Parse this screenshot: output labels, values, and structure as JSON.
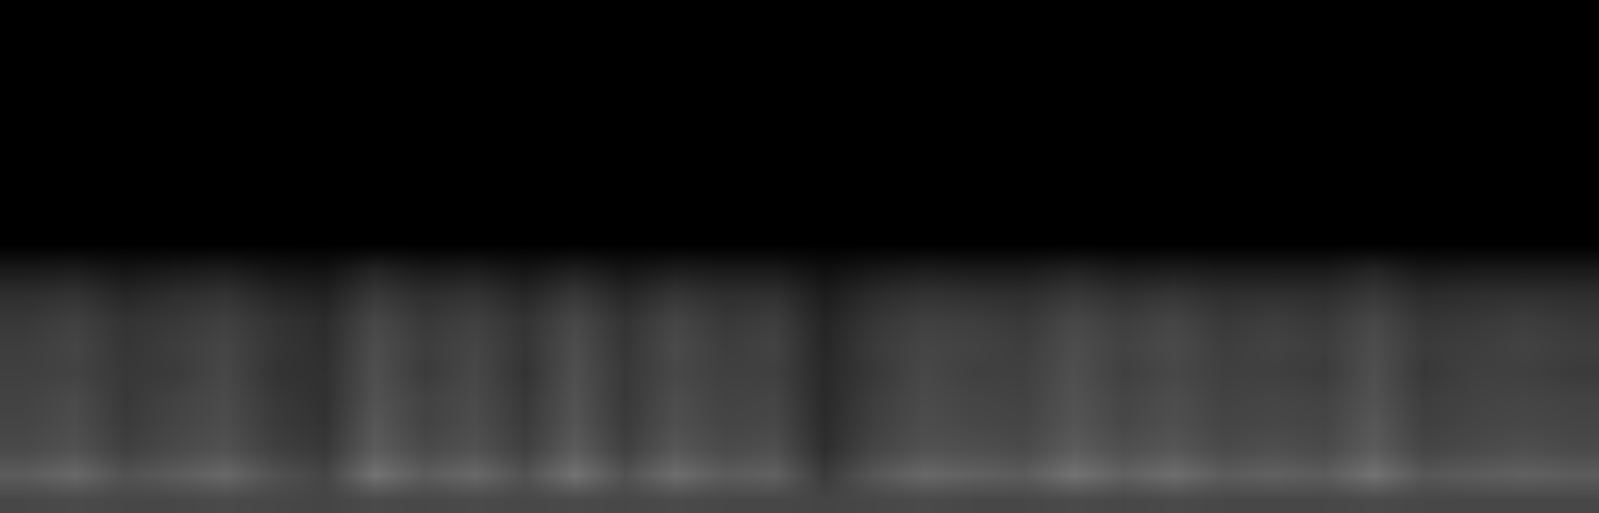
{
  "chart_data": {
    "type": "heatmap",
    "tick_labels": false,
    "color": "#ffffff",
    "zlim": [
      0,
      1
    ],
    "cells": [
      [
        0,
        0,
        0,
        0,
        0,
        0,
        0,
        0,
        0,
        0,
        0,
        0,
        0,
        0,
        0,
        0,
        0,
        0,
        0,
        0,
        0,
        0,
        0,
        0,
        0,
        0,
        0,
        0,
        0,
        0,
        0,
        0
      ],
      [
        0,
        0,
        0,
        0,
        0,
        0,
        0,
        0,
        0,
        0,
        0,
        0,
        0,
        0,
        0,
        0,
        0,
        0,
        0,
        0,
        0,
        0,
        0,
        0,
        0,
        0,
        0,
        0,
        0,
        0,
        0,
        0
      ],
      [
        0,
        0,
        0,
        0,
        0,
        0,
        0,
        0,
        0,
        0,
        0,
        0,
        0,
        0,
        0,
        0,
        0,
        0,
        0,
        0,
        0,
        0,
        0,
        0,
        0,
        0,
        0,
        0,
        0,
        0,
        0,
        0
      ],
      [
        0,
        0,
        0,
        0,
        0,
        0,
        0,
        0,
        0,
        0,
        0,
        0,
        0,
        0,
        0,
        0,
        0,
        0,
        0,
        0,
        0,
        0,
        0,
        0,
        0,
        0,
        0,
        0,
        0,
        0,
        0,
        0
      ],
      [
        0,
        0,
        0,
        0,
        0,
        0,
        0,
        0,
        0,
        0,
        0,
        0,
        0,
        0,
        0,
        0,
        0,
        0,
        0,
        0,
        0,
        0,
        0,
        0,
        0,
        0,
        0,
        0,
        0,
        0,
        0,
        0
      ],
      [
        0,
        0,
        0,
        0,
        0,
        0,
        0,
        0,
        0,
        0,
        0,
        0,
        0,
        0,
        0,
        0,
        0,
        0,
        0,
        0,
        0,
        0,
        0,
        0,
        0,
        0,
        0,
        0,
        0,
        0,
        0,
        0
      ],
      [
        0,
        0,
        0,
        0,
        0,
        0,
        0,
        0,
        0,
        0,
        0,
        0,
        0,
        0,
        0,
        0,
        0,
        0,
        0,
        0,
        0,
        0,
        0,
        0,
        0,
        0,
        0,
        0,
        0,
        0,
        0,
        0
      ],
      [
        0,
        0,
        0,
        0,
        0,
        0,
        0,
        0,
        0,
        0,
        0,
        0,
        0,
        0,
        0,
        0,
        0,
        0,
        0,
        0,
        0,
        0,
        0,
        0,
        0,
        0,
        0,
        0,
        0,
        0,
        0,
        0
      ],
      [
        0,
        0,
        0,
        0,
        0,
        0,
        0,
        0,
        0,
        0,
        0,
        0,
        0,
        0,
        0,
        0,
        0,
        0,
        0,
        0,
        0,
        0,
        0,
        0,
        0,
        0,
        0,
        0,
        0,
        0,
        0,
        0
      ],
      [
        0,
        0,
        0,
        0,
        0,
        0,
        0,
        0,
        0,
        0,
        0,
        0,
        0,
        0,
        0,
        0,
        0,
        0,
        0,
        0,
        0,
        0,
        0,
        0,
        0,
        0,
        0,
        0,
        0,
        0,
        0,
        0
      ],
      [
        0.1,
        0.11,
        0.08,
        0.1,
        0.11,
        0.08,
        0.07,
        0.14,
        0.1,
        0.11,
        0.08,
        0.12,
        0.08,
        0.11,
        0.1,
        0.1,
        0.06,
        0.09,
        0.11,
        0.1,
        0.1,
        0.13,
        0.1,
        0.11,
        0.1,
        0.1,
        0.1,
        0.14,
        0.09,
        0.1,
        0.1,
        0.1
      ],
      [
        0.18,
        0.2,
        0.15,
        0.18,
        0.2,
        0.15,
        0.13,
        0.22,
        0.18,
        0.2,
        0.15,
        0.22,
        0.15,
        0.21,
        0.18,
        0.19,
        0.11,
        0.17,
        0.2,
        0.19,
        0.18,
        0.22,
        0.19,
        0.21,
        0.18,
        0.19,
        0.18,
        0.22,
        0.17,
        0.18,
        0.19,
        0.18
      ],
      [
        0.22,
        0.25,
        0.2,
        0.22,
        0.25,
        0.2,
        0.17,
        0.28,
        0.22,
        0.25,
        0.2,
        0.28,
        0.2,
        0.27,
        0.22,
        0.24,
        0.14,
        0.21,
        0.25,
        0.24,
        0.22,
        0.28,
        0.24,
        0.27,
        0.22,
        0.24,
        0.22,
        0.28,
        0.21,
        0.22,
        0.24,
        0.22
      ],
      [
        0.24,
        0.27,
        0.21,
        0.24,
        0.27,
        0.21,
        0.18,
        0.3,
        0.24,
        0.27,
        0.21,
        0.3,
        0.21,
        0.29,
        0.24,
        0.26,
        0.15,
        0.23,
        0.27,
        0.26,
        0.24,
        0.3,
        0.26,
        0.29,
        0.24,
        0.26,
        0.24,
        0.3,
        0.23,
        0.24,
        0.26,
        0.24
      ],
      [
        0.25,
        0.26,
        0.22,
        0.23,
        0.28,
        0.2,
        0.19,
        0.31,
        0.23,
        0.28,
        0.2,
        0.31,
        0.22,
        0.28,
        0.25,
        0.25,
        0.16,
        0.22,
        0.28,
        0.25,
        0.25,
        0.31,
        0.25,
        0.28,
        0.25,
        0.25,
        0.23,
        0.31,
        0.22,
        0.25,
        0.25,
        0.23
      ],
      [
        0.26,
        0.29,
        0.22,
        0.26,
        0.29,
        0.22,
        0.19,
        0.32,
        0.26,
        0.29,
        0.22,
        0.32,
        0.22,
        0.3,
        0.26,
        0.27,
        0.16,
        0.24,
        0.29,
        0.27,
        0.26,
        0.32,
        0.27,
        0.3,
        0.26,
        0.27,
        0.26,
        0.32,
        0.24,
        0.26,
        0.27,
        0.26
      ],
      [
        0.27,
        0.3,
        0.23,
        0.27,
        0.3,
        0.23,
        0.2,
        0.34,
        0.26,
        0.3,
        0.23,
        0.33,
        0.23,
        0.31,
        0.27,
        0.28,
        0.17,
        0.25,
        0.3,
        0.28,
        0.27,
        0.33,
        0.28,
        0.31,
        0.27,
        0.28,
        0.27,
        0.34,
        0.25,
        0.27,
        0.28,
        0.27
      ],
      [
        0.29,
        0.32,
        0.25,
        0.29,
        0.32,
        0.25,
        0.22,
        0.36,
        0.29,
        0.32,
        0.25,
        0.36,
        0.25,
        0.34,
        0.29,
        0.31,
        0.18,
        0.27,
        0.32,
        0.31,
        0.29,
        0.36,
        0.31,
        0.34,
        0.29,
        0.31,
        0.29,
        0.36,
        0.27,
        0.29,
        0.31,
        0.29
      ],
      [
        0.36,
        0.41,
        0.32,
        0.36,
        0.41,
        0.32,
        0.27,
        0.45,
        0.36,
        0.41,
        0.32,
        0.45,
        0.32,
        0.43,
        0.36,
        0.38,
        0.23,
        0.34,
        0.41,
        0.38,
        0.36,
        0.45,
        0.38,
        0.43,
        0.36,
        0.38,
        0.36,
        0.45,
        0.34,
        0.36,
        0.38,
        0.36
      ],
      [
        0.28,
        0.29,
        0.28,
        0.28,
        0.29,
        0.28,
        0.27,
        0.29,
        0.28,
        0.29,
        0.28,
        0.29,
        0.28,
        0.29,
        0.28,
        0.28,
        0.27,
        0.28,
        0.29,
        0.28,
        0.28,
        0.29,
        0.28,
        0.29,
        0.28,
        0.28,
        0.28,
        0.29,
        0.28,
        0.28,
        0.28,
        0.28
      ]
    ]
  }
}
